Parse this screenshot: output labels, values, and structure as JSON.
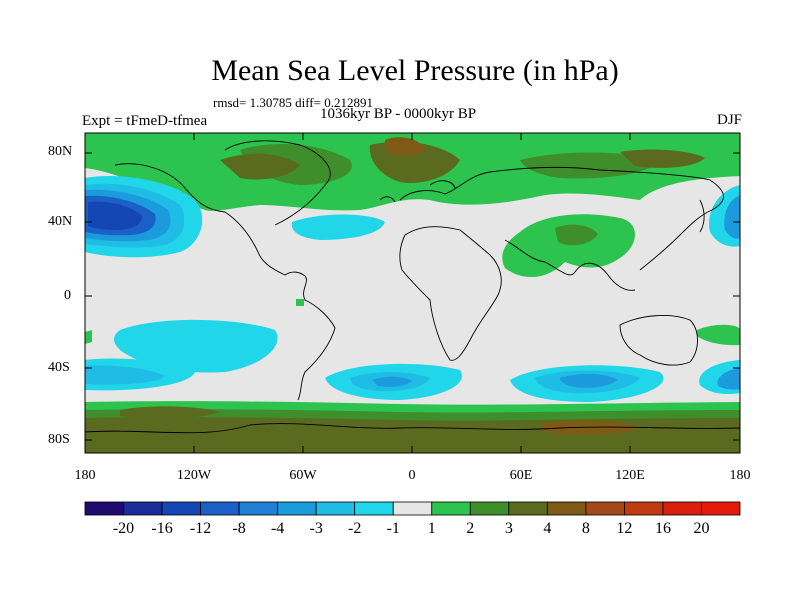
{
  "title": "Mean Sea Level Pressure (in hPa)",
  "stats": "rmsd= 1.30785 diff= 0.212891",
  "subtitle": "1036kyr BP - 0000kyr BP",
  "experiment": "Expt = tFmeD-tfmea",
  "season": "DJF",
  "lat_labels": [
    "80N",
    "40N",
    "0",
    "40S",
    "80S"
  ],
  "lon_labels": [
    "180",
    "120W",
    "60W",
    "0",
    "60E",
    "120E",
    "180"
  ],
  "colorbar": {
    "labels": [
      "-20",
      "-16",
      "-12",
      "-8",
      "-4",
      "-3",
      "-2",
      "-1",
      "1",
      "2",
      "3",
      "4",
      "8",
      "12",
      "16",
      "20"
    ],
    "colors": [
      "#1f0a6e",
      "#1a2c9a",
      "#1446b4",
      "#1a60c6",
      "#1f7fd4",
      "#1c9bdc",
      "#1fbce6",
      "#22d6ea",
      "#e6e6e6",
      "#2cc44e",
      "#3e8f2c",
      "#5a6a1e",
      "#7e5a16",
      "#a3481a",
      "#c23a12",
      "#d81e0c",
      "#e61a0a"
    ]
  },
  "colors": {
    "background": "#e6e6e6",
    "coast": "#000000"
  }
}
